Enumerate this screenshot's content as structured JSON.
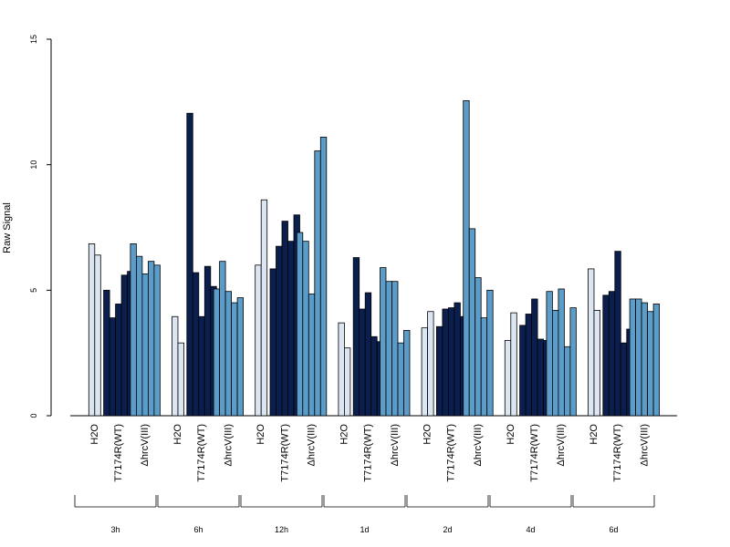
{
  "chart_data": {
    "type": "bar",
    "ylabel": "Raw Signal",
    "ylim": [
      0,
      15
    ],
    "yticks": [
      0,
      5,
      10,
      15
    ],
    "grid": false,
    "colors": {
      "H2O": "#dce6f2",
      "T7174R(WT)": "#0b1f4f",
      "ΔhrcV(III)": "#5b9cc8"
    },
    "groups": [
      {
        "label": "3h",
        "series": [
          {
            "label": "H2O",
            "values": [
              6.85,
              6.4
            ]
          },
          {
            "label": "T7174R(WT)",
            "values": [
              5.0,
              3.9,
              4.45,
              5.6,
              5.75
            ]
          },
          {
            "label": "ΔhrcV(III)",
            "values": [
              6.85,
              6.35,
              5.65,
              6.15,
              6.0
            ]
          }
        ]
      },
      {
        "label": "6h",
        "series": [
          {
            "label": "H2O",
            "values": [
              3.95,
              2.9
            ]
          },
          {
            "label": "T7174R(WT)",
            "values": [
              12.05,
              5.7,
              3.95,
              5.95,
              5.15
            ]
          },
          {
            "label": "ΔhrcV(III)",
            "values": [
              5.05,
              6.15,
              4.95,
              4.5,
              4.7
            ]
          }
        ]
      },
      {
        "label": "12h",
        "series": [
          {
            "label": "H2O",
            "values": [
              6.0,
              8.6
            ]
          },
          {
            "label": "T7174R(WT)",
            "values": [
              5.85,
              6.75,
              7.75,
              6.95,
              8.0
            ]
          },
          {
            "label": "ΔhrcV(III)",
            "values": [
              7.3,
              6.95,
              4.85,
              10.55,
              11.1
            ]
          }
        ]
      },
      {
        "label": "1d",
        "series": [
          {
            "label": "H2O",
            "values": [
              3.7,
              2.7
            ]
          },
          {
            "label": "T7174R(WT)",
            "values": [
              6.3,
              4.25,
              4.9,
              3.15,
              2.95
            ]
          },
          {
            "label": "ΔhrcV(III)",
            "values": [
              5.9,
              5.35,
              5.35,
              2.9,
              3.4
            ]
          }
        ]
      },
      {
        "label": "2d",
        "series": [
          {
            "label": "H2O",
            "values": [
              3.5,
              4.15
            ]
          },
          {
            "label": "T7174R(WT)",
            "values": [
              3.55,
              4.25,
              4.3,
              4.5,
              3.95
            ]
          },
          {
            "label": "ΔhrcV(III)",
            "values": [
              12.55,
              7.45,
              5.5,
              3.9,
              5.0
            ]
          }
        ]
      },
      {
        "label": "4d",
        "series": [
          {
            "label": "H2O",
            "values": [
              3.0,
              4.1
            ]
          },
          {
            "label": "T7174R(WT)",
            "values": [
              3.6,
              4.05,
              4.65,
              3.05,
              3.0
            ]
          },
          {
            "label": "ΔhrcV(III)",
            "values": [
              4.95,
              4.2,
              5.05,
              2.75,
              4.3
            ]
          }
        ]
      },
      {
        "label": "6d",
        "series": [
          {
            "label": "H2O",
            "values": [
              5.85,
              4.2
            ]
          },
          {
            "label": "T7174R(WT)",
            "values": [
              4.8,
              4.95,
              6.55,
              2.9,
              3.45
            ]
          },
          {
            "label": "ΔhrcV(III)",
            "values": [
              4.65,
              4.65,
              4.5,
              4.15,
              4.45
            ]
          }
        ]
      }
    ]
  }
}
